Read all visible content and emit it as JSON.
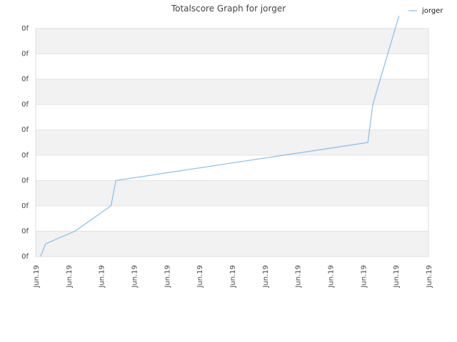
{
  "chart_data": {
    "type": "line",
    "title": "Totalscore Graph for jorger",
    "xlabel": "",
    "ylabel": "",
    "x_tick_labels": [
      "Jun.19",
      "Jun.19",
      "Jun.19",
      "Jun.19",
      "Jun.19",
      "Jun.19",
      "Jun.19",
      "Jun.19",
      "Jun.19",
      "Jun.19",
      "Jun.19",
      "Jun.19",
      "Jun.19"
    ],
    "y_tick_labels": [
      "0f",
      "0f",
      "0f",
      "0f",
      "0f",
      "0f",
      "0f",
      "0f",
      "0f",
      "0f"
    ],
    "xlim": [
      0,
      12
    ],
    "ylim": [
      0,
      9
    ],
    "grid": true,
    "legend_position": "top-right",
    "colors": {
      "line": "#8cc3ec",
      "band": "#f2f2f2",
      "top_band": "#ebebeb",
      "grid": "#e2e2e2"
    },
    "series": [
      {
        "name": "jorger",
        "x": [
          0.15,
          0.3,
          1.2,
          2.3,
          2.45,
          10.15,
          10.3,
          11.1
        ],
        "y": [
          0,
          0.5,
          1.0,
          2.0,
          3.0,
          4.5,
          6.0,
          9.5
        ]
      }
    ]
  }
}
